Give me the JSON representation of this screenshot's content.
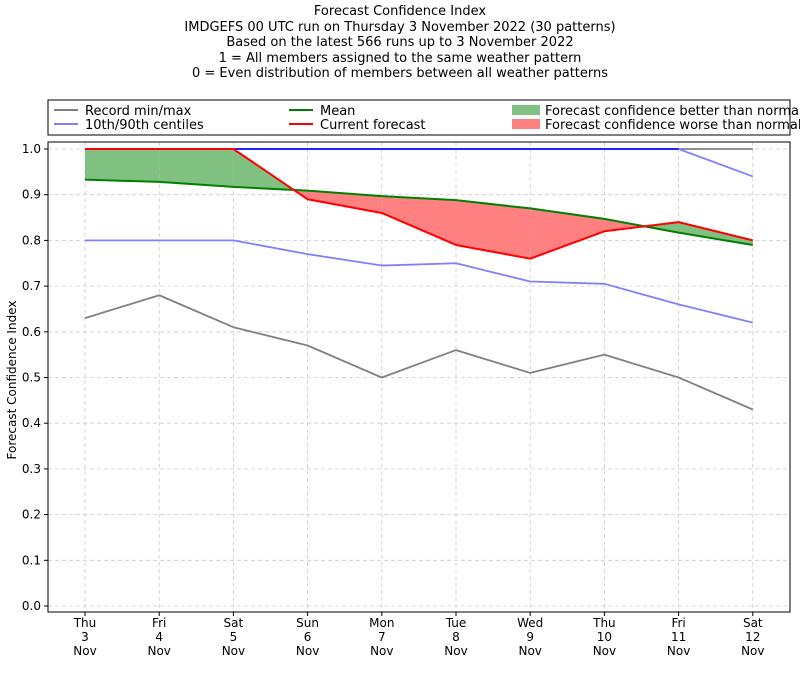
{
  "chart_data": {
    "type": "line",
    "title_lines": [
      "Forecast Confidence Index",
      "IMDGEFS 00 UTC run on Thursday 3 November 2022 (30 patterns)",
      "Based on the latest 566 runs up to 3 November 2022",
      "1 = All members assigned to the same weather pattern",
      "0 = Even distribution of members between all weather patterns"
    ],
    "ylabel": "Forecast Confidence Index",
    "xlabel": "",
    "ylim": [
      0,
      1.0
    ],
    "yticks": [
      "0.0",
      "0.1",
      "0.2",
      "0.3",
      "0.4",
      "0.5",
      "0.6",
      "0.7",
      "0.8",
      "0.9",
      "1.0"
    ],
    "grid": true,
    "legend_placement": "top, outside plot",
    "categories": [
      [
        "Thu",
        "3",
        "Nov"
      ],
      [
        "Fri",
        "4",
        "Nov"
      ],
      [
        "Sat",
        "5",
        "Nov"
      ],
      [
        "Sun",
        "6",
        "Nov"
      ],
      [
        "Mon",
        "7",
        "Nov"
      ],
      [
        "Tue",
        "8",
        "Nov"
      ],
      [
        "Wed",
        "9",
        "Nov"
      ],
      [
        "Thu",
        "10",
        "Nov"
      ],
      [
        "Fri",
        "11",
        "Nov"
      ],
      [
        "Sat",
        "12",
        "Nov"
      ]
    ],
    "legend": [
      {
        "key": "record",
        "label": "Record min/max",
        "kind": "line",
        "color": "#808080"
      },
      {
        "key": "mean",
        "label": "Mean",
        "kind": "line",
        "color": "#008000"
      },
      {
        "key": "better",
        "label": "Forecast confidence better than normal",
        "kind": "patch",
        "color": "#80c080"
      },
      {
        "key": "centile",
        "label": "10th/90th centiles",
        "kind": "line",
        "color": "#8080ff"
      },
      {
        "key": "current",
        "label": "Current forecast",
        "kind": "line",
        "color": "#ff0000"
      },
      {
        "key": "worse",
        "label": "Forecast confidence worse than normal",
        "kind": "patch",
        "color": "#ff8080"
      }
    ],
    "series": [
      {
        "key": "record_max",
        "name": "Record min/max",
        "color": "#808080",
        "values": [
          1.0,
          1.0,
          1.0,
          1.0,
          1.0,
          1.0,
          1.0,
          1.0,
          1.0,
          1.0
        ]
      },
      {
        "key": "record_min",
        "name": "Record min/max",
        "color": "#808080",
        "values": [
          0.63,
          0.68,
          0.61,
          0.57,
          0.5,
          0.56,
          0.51,
          0.55,
          0.5,
          0.43
        ]
      },
      {
        "key": "centile_90",
        "name": "10th/90th centiles",
        "color": "#8080ff",
        "values": [
          1.0,
          1.0,
          1.0,
          1.0,
          1.0,
          1.0,
          1.0,
          1.0,
          1.0,
          0.94
        ]
      },
      {
        "key": "centile_10",
        "name": "10th/90th centiles",
        "color": "#8080ff",
        "values": [
          0.8,
          0.8,
          0.8,
          0.77,
          0.745,
          0.75,
          0.71,
          0.705,
          0.66,
          0.62
        ]
      },
      {
        "key": "mean",
        "name": "Mean",
        "color": "#008000",
        "values": [
          0.933,
          0.928,
          0.917,
          0.909,
          0.897,
          0.888,
          0.87,
          0.847,
          0.817,
          0.79
        ]
      },
      {
        "key": "current",
        "name": "Current forecast",
        "color": "#ff0000",
        "values": [
          1.0,
          1.0,
          1.0,
          0.89,
          0.86,
          0.79,
          0.76,
          0.82,
          0.84,
          0.8
        ]
      }
    ],
    "colors": {
      "better_fill": "#80c080",
      "worse_fill": "#ff8080",
      "grid": "#cccccc",
      "centile_top": "#0000ff"
    }
  }
}
